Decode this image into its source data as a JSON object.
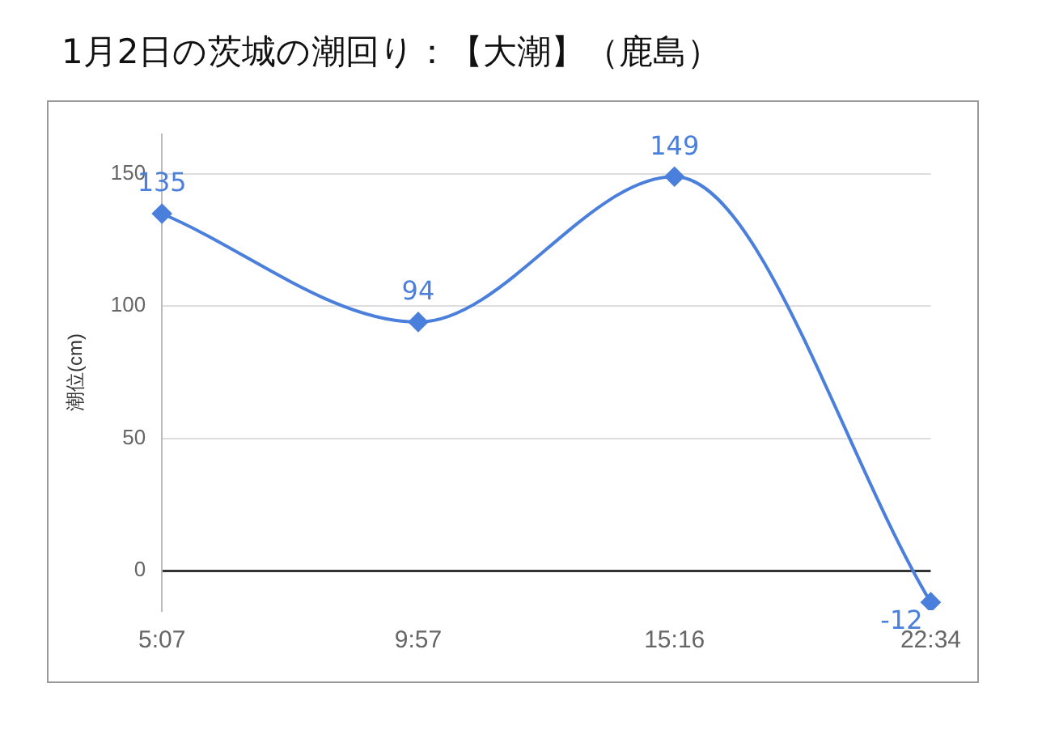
{
  "chart_data": {
    "type": "line",
    "title": "1月2日の茨城の潮回り：【大潮】（鹿島）",
    "ylabel": "潮位(cm)",
    "categories": [
      "5:07",
      "9:57",
      "15:16",
      "22:34"
    ],
    "series": [
      {
        "color": "#4a7fdc",
        "values": [
          135,
          94,
          149,
          -12
        ]
      }
    ],
    "ylim": [
      -15,
      165
    ],
    "yticks": [
      0,
      50,
      100,
      150
    ],
    "grid": "y",
    "legend": false,
    "marker": "diamond",
    "data_labels": true
  }
}
